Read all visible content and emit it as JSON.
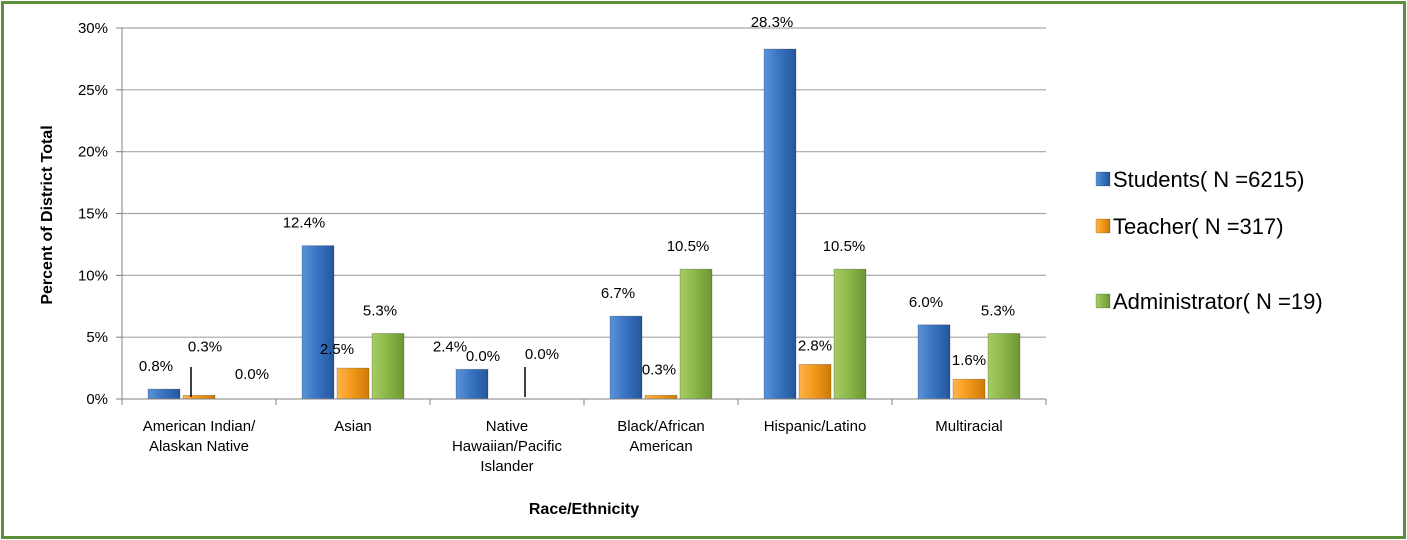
{
  "chart_data": {
    "type": "bar",
    "title": "",
    "xlabel": "Race/Ethnicity",
    "ylabel": "Percent of District Total",
    "ylim": [
      0,
      30
    ],
    "y_ticks": [
      "0%",
      "5%",
      "10%",
      "15%",
      "20%",
      "25%",
      "30%"
    ],
    "categories": [
      [
        "American Indian/",
        "Alaskan Native"
      ],
      [
        "Asian"
      ],
      [
        "Native",
        "Hawaiian/Pacific",
        "Islander"
      ],
      [
        "Black/African",
        "American"
      ],
      [
        "Hispanic/Latino"
      ],
      [
        "Multiracial"
      ]
    ],
    "series": [
      {
        "name": "Students( N =6215)",
        "color": "#3a75c4",
        "values": [
          0.8,
          12.4,
          2.4,
          6.7,
          28.3,
          6.0
        ],
        "labels": [
          "0.8%",
          "12.4%",
          "2.4%",
          "6.7%",
          "28.3%",
          "6.0%"
        ]
      },
      {
        "name": "Teacher( N =317)",
        "color": "#f39a1c",
        "values": [
          0.3,
          2.5,
          0.0,
          0.3,
          2.8,
          1.6
        ],
        "labels": [
          "0.3%",
          "2.5%",
          "0.0%",
          "0.3%",
          "2.8%",
          "1.6%"
        ]
      },
      {
        "name": "Administrator( N =19)",
        "color": "#8db84a",
        "values": [
          0.0,
          5.3,
          0.0,
          10.5,
          10.5,
          5.3
        ],
        "labels": [
          "0.0%",
          "5.3%",
          "0.0%",
          "10.5%",
          "10.5%",
          "5.3%"
        ]
      }
    ],
    "grid": true,
    "legend_position": "right"
  }
}
